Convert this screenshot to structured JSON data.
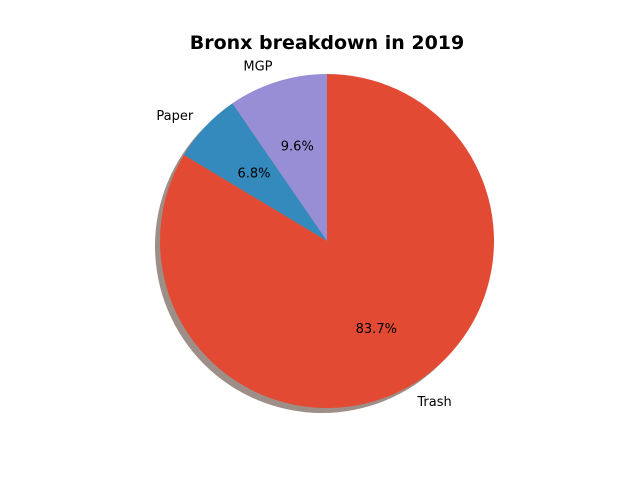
{
  "chart_data": {
    "type": "pie",
    "title": "Bronx breakdown in 2019",
    "slices": [
      {
        "label": "MGP",
        "value": 9.6,
        "pct_label": "9.6%",
        "color": "#988ED5"
      },
      {
        "label": "Paper",
        "value": 6.8,
        "pct_label": "6.8%",
        "color": "#348ABD"
      },
      {
        "label": "Trash",
        "value": 83.7,
        "pct_label": "83.7%",
        "color": "#E24A33"
      }
    ],
    "start_angle": "90",
    "direction": "counterclockwise",
    "shadow": true,
    "shadow_color": "#9E8E88"
  }
}
